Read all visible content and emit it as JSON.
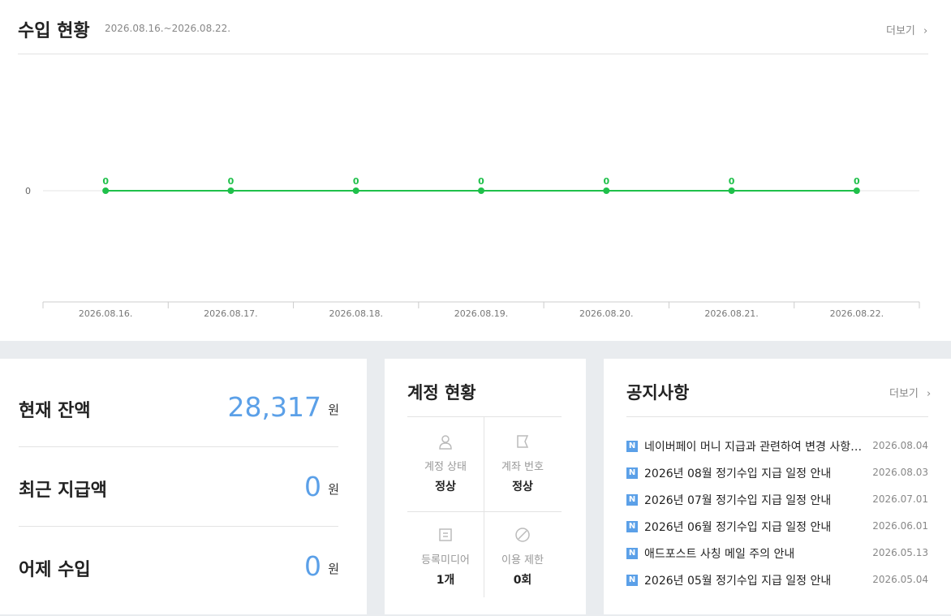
{
  "header": {
    "title": "수입 현황",
    "period": "2026.08.16.~2026.08.22.",
    "more": "더보기"
  },
  "chart_data": {
    "type": "line",
    "categories": [
      "2026.08.16.",
      "2026.08.17.",
      "2026.08.18.",
      "2026.08.19.",
      "2026.08.20.",
      "2026.08.21.",
      "2026.08.22."
    ],
    "series": [
      {
        "name": "수입",
        "color": "#1fc04a",
        "values": [
          0,
          0,
          0,
          0,
          0,
          0,
          0
        ]
      }
    ],
    "ylim": [
      -1,
      1
    ],
    "yticks": [
      0
    ],
    "grid": true
  },
  "balance": {
    "rows": [
      {
        "label": "현재 잔액",
        "value": "28,317",
        "unit": "원"
      },
      {
        "label": "최근 지급액",
        "value": "0",
        "unit": "원"
      },
      {
        "label": "어제 수입",
        "value": "0",
        "unit": "원"
      }
    ]
  },
  "account": {
    "title": "계정 현황",
    "cells": [
      {
        "label": "계정 상태",
        "value": "정상"
      },
      {
        "label": "계좌 번호",
        "value": "정상"
      },
      {
        "label": "등록미디어",
        "value": "1개"
      },
      {
        "label": "이용 제한",
        "value": "0회"
      }
    ]
  },
  "notices": {
    "title": "공지사항",
    "more": "더보기",
    "items": [
      {
        "text": "네이버페이 머니 지급과 관련하여 변경 사항…",
        "date": "2026.08.04"
      },
      {
        "text": "2026년 08월 정기수입 지급 일정 안내",
        "date": "2026.08.03"
      },
      {
        "text": "2026년 07월 정기수입 지급 일정 안내",
        "date": "2026.07.01"
      },
      {
        "text": "2026년 06월 정기수입 지급 일정 안내",
        "date": "2026.06.01"
      },
      {
        "text": "애드포스트 사칭 메일 주의 안내",
        "date": "2026.05.13"
      },
      {
        "text": "2026년 05월 정기수입 지급 일정 안내",
        "date": "2026.05.04"
      }
    ]
  }
}
